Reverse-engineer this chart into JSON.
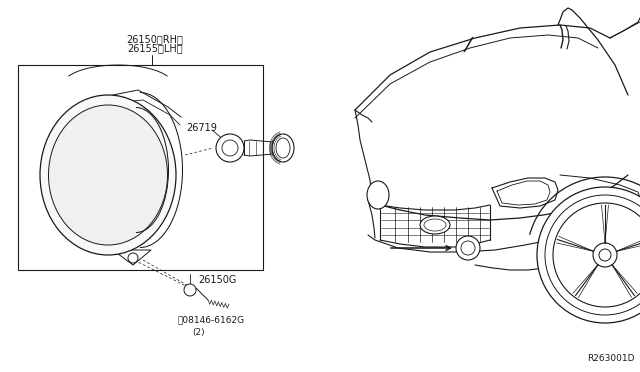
{
  "bg_color": "#ffffff",
  "line_color": "#1a1a1a",
  "fig_id": "R263001D",
  "label_part1": "26150〈RH〉",
  "label_part1b": "26155〈LH〉",
  "label_part2": "26719",
  "label_part3": "26150G",
  "label_part4": "°08146-6162G",
  "label_part4b": "(2)"
}
